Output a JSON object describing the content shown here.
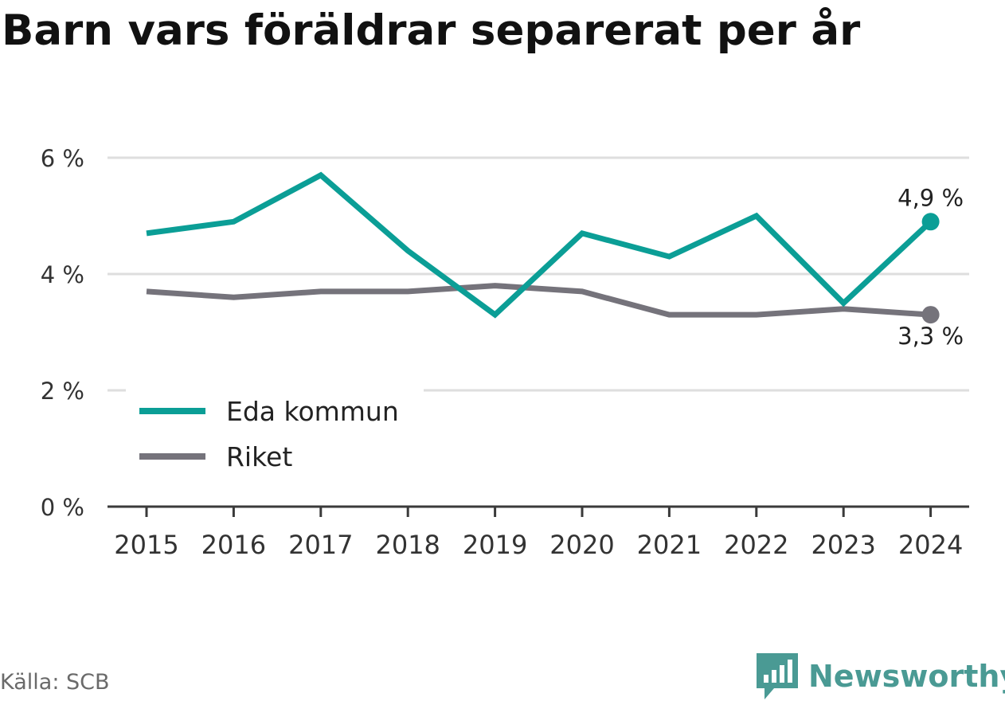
{
  "title": "Barn vars föräldrar separerat per år",
  "source": "Källa: SCB",
  "brand": {
    "name": "Newsworthy",
    "logo_icon": "newsworthy-bar-chart-icon",
    "color": "#4a9a94"
  },
  "chart_data": {
    "type": "line",
    "title": "Barn vars föräldrar separerat per år",
    "xlabel": "",
    "ylabel": "",
    "categories": [
      "2015",
      "2016",
      "2017",
      "2018",
      "2019",
      "2020",
      "2021",
      "2022",
      "2023",
      "2024"
    ],
    "y_ticks": [
      0,
      2,
      4,
      6
    ],
    "y_tick_labels": [
      "0 %",
      "2 %",
      "4 %",
      "6 %"
    ],
    "ylim": [
      0,
      6.3
    ],
    "grid": true,
    "legend_position": "bottom-left",
    "series": [
      {
        "name": "Eda kommun",
        "color": "#0b9e96",
        "values": [
          4.7,
          4.9,
          5.7,
          4.4,
          3.3,
          4.7,
          4.3,
          5.0,
          3.5,
          4.9
        ],
        "end_label": "4,9 %"
      },
      {
        "name": "Riket",
        "color": "#75737b",
        "values": [
          3.7,
          3.6,
          3.7,
          3.7,
          3.8,
          3.7,
          3.3,
          3.3,
          3.4,
          3.3
        ],
        "end_label": "3,3 %"
      }
    ]
  }
}
